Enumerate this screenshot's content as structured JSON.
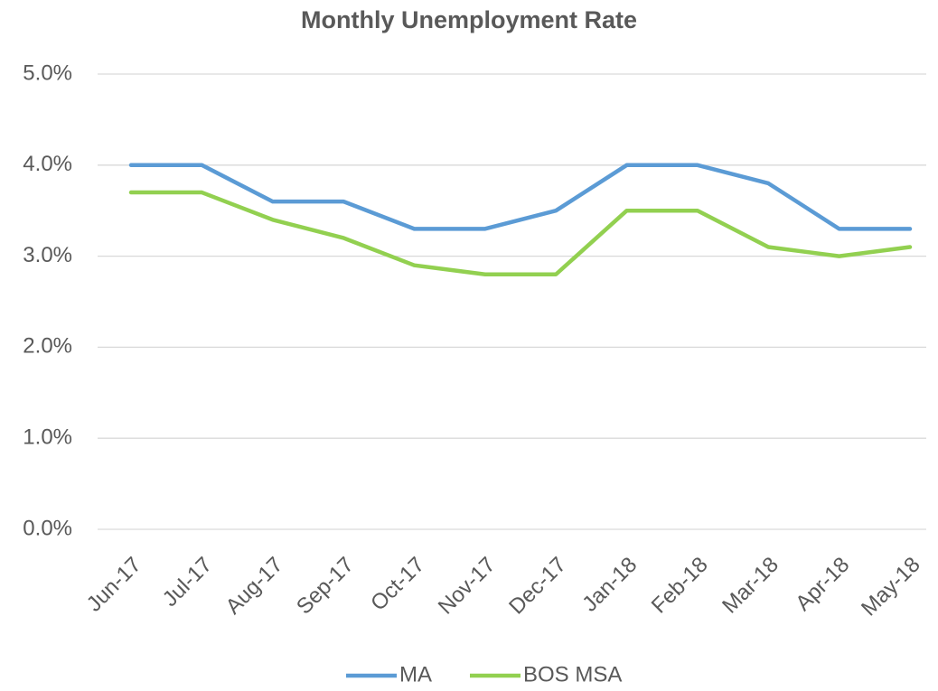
{
  "chart_data": {
    "type": "line",
    "title": "Monthly Unemployment Rate",
    "categories": [
      "Jun-17",
      "Jul-17",
      "Aug-17",
      "Sep-17",
      "Oct-17",
      "Nov-17",
      "Dec-17",
      "Jan-18",
      "Feb-18",
      "Mar-18",
      "Apr-18",
      "May-18"
    ],
    "series": [
      {
        "name": "MA",
        "color": "#5b9bd5",
        "values": [
          4.0,
          4.0,
          3.6,
          3.6,
          3.3,
          3.3,
          3.5,
          4.0,
          4.0,
          3.8,
          3.3,
          3.3
        ]
      },
      {
        "name": "BOS MSA",
        "color": "#92d050",
        "values": [
          3.7,
          3.7,
          3.4,
          3.2,
          2.9,
          2.8,
          2.8,
          3.5,
          3.5,
          3.1,
          3.0,
          3.1
        ]
      }
    ],
    "ylim": [
      0,
      5
    ],
    "yticks": [
      {
        "value": 0,
        "label": "0.0%"
      },
      {
        "value": 1,
        "label": "1.0%"
      },
      {
        "value": 2,
        "label": "2.0%"
      },
      {
        "value": 3,
        "label": "3.0%"
      },
      {
        "value": 4,
        "label": "4.0%"
      },
      {
        "value": 5,
        "label": "5.0%"
      }
    ],
    "grid": true,
    "legend": "bottom"
  }
}
